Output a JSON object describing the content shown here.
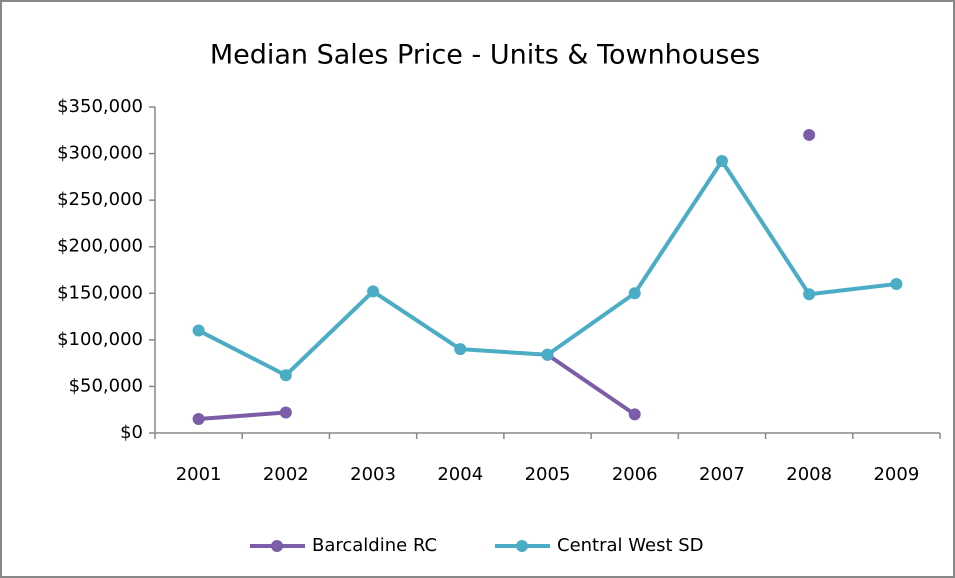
{
  "chart_data": {
    "type": "line",
    "title": "Median Sales Price - Units & Townhouses",
    "categories": [
      "2001",
      "2002",
      "2003",
      "2004",
      "2005",
      "2006",
      "2007",
      "2008",
      "2009"
    ],
    "series": [
      {
        "name": "Barcaldine RC",
        "color": "#7b5ea7",
        "values": [
          15000,
          22000,
          null,
          null,
          84000,
          20000,
          null,
          320000,
          null
        ]
      },
      {
        "name": "Central West SD",
        "color": "#4bacc6",
        "values": [
          110000,
          62000,
          152000,
          90000,
          84000,
          150000,
          292000,
          149000,
          160000
        ]
      }
    ],
    "ylim": [
      0,
      350000
    ],
    "yticks": [
      {
        "value": 0,
        "label": "$0"
      },
      {
        "value": 50000,
        "label": "$50,000"
      },
      {
        "value": 100000,
        "label": "$100,000"
      },
      {
        "value": 150000,
        "label": "$150,000"
      },
      {
        "value": 200000,
        "label": "$200,000"
      },
      {
        "value": 250000,
        "label": "$250,000"
      },
      {
        "value": 300000,
        "label": "$300,000"
      },
      {
        "value": 350000,
        "label": "$350,000"
      }
    ],
    "grid": false,
    "legend": "bottom"
  }
}
